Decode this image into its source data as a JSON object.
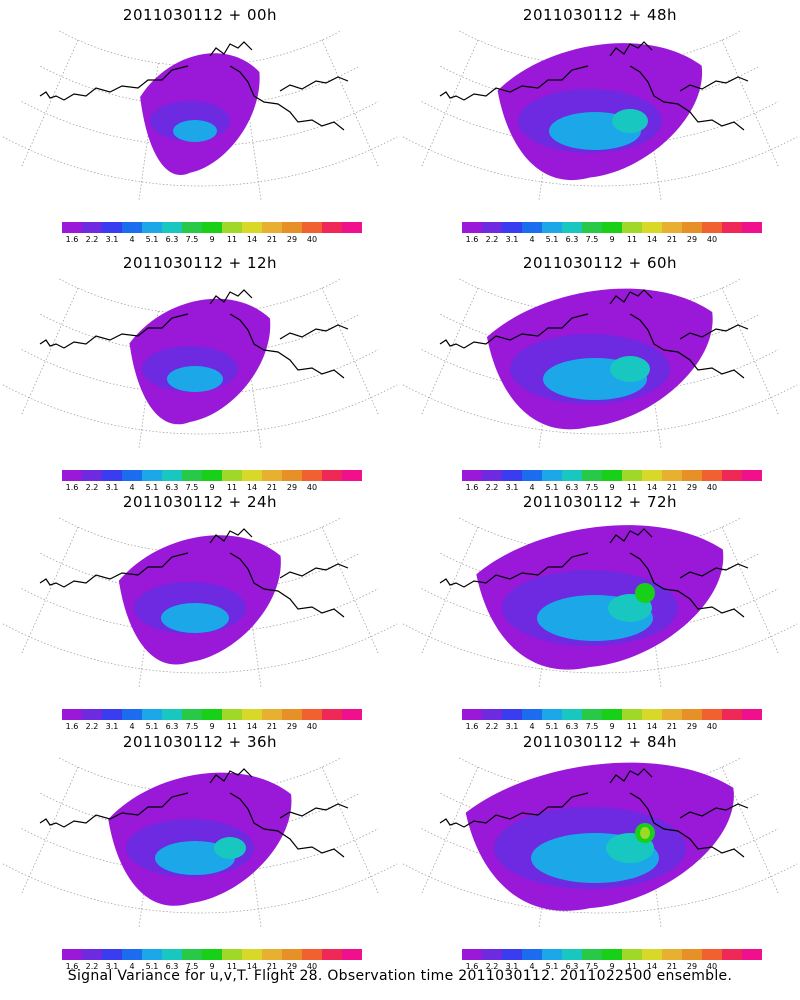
{
  "panels": [
    {
      "title": "2011030112 + 00h",
      "level": 0,
      "col": 0,
      "row": 0
    },
    {
      "title": "2011030112 + 48h",
      "level": 4,
      "col": 1,
      "row": 0
    },
    {
      "title": "2011030112 + 12h",
      "level": 1,
      "col": 0,
      "row": 1
    },
    {
      "title": "2011030112 + 60h",
      "level": 5,
      "col": 1,
      "row": 1
    },
    {
      "title": "2011030112 + 24h",
      "level": 2,
      "col": 0,
      "row": 2
    },
    {
      "title": "2011030112 + 72h",
      "level": 6,
      "col": 1,
      "row": 2
    },
    {
      "title": "2011030112 + 36h",
      "level": 3,
      "col": 0,
      "row": 3
    },
    {
      "title": "2011030112 + 84h",
      "level": 7,
      "col": 1,
      "row": 3
    }
  ],
  "colorbar": {
    "labels": [
      "1.6",
      "2.2",
      "3.1",
      "4",
      "5.1",
      "6.3",
      "7.5",
      "9",
      "11",
      "14",
      "21",
      "29",
      "40"
    ],
    "colors": [
      "#9a18d8",
      "#6e2ae0",
      "#3a3cf0",
      "#1c6cf0",
      "#1ca8e8",
      "#18c8c0",
      "#28c848",
      "#18d018",
      "#a0d828",
      "#d8d828",
      "#e8b030",
      "#e89028",
      "#f06030",
      "#f02858",
      "#f0108c"
    ]
  },
  "caption": "Signal Variance for u,v,T. Flight 28. Observation time 2011030112. 2011022500 ensemble."
}
